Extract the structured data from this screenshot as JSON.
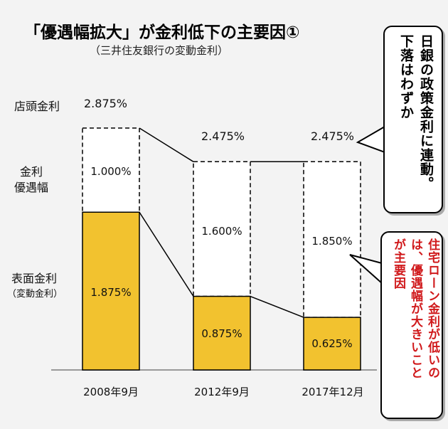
{
  "title": "「優遇幅拡大」が金利低下の主要因①",
  "subtitle": "（三井住友銀行の変動金利）",
  "row_labels": {
    "store_rate": "店頭金利",
    "discount_line1": "金利",
    "discount_line2": "優遇幅",
    "applied_line1": "表面金利",
    "applied_line2": "（変動金利）"
  },
  "chart_data": {
    "type": "bar",
    "stacked": true,
    "categories": [
      "2008年9月",
      "2012年9月",
      "2017年12月"
    ],
    "series": [
      {
        "values": [
          1.875,
          0.875,
          0.625
        ],
        "value_labels": [
          "1.875%",
          "0.875%",
          "0.625%"
        ],
        "color": "#f2c22f"
      },
      {
        "values": [
          1.0,
          1.6,
          1.85
        ],
        "value_labels": [
          "1.000%",
          "1.600%",
          "1.850%"
        ],
        "color": "#ffffff"
      }
    ],
    "totals": [
      2.875,
      2.475,
      2.475
    ],
    "total_labels": [
      "2.875%",
      "2.475%",
      "2.475%"
    ],
    "ylim": [
      0,
      2.875
    ]
  },
  "callouts": {
    "top_lines": [
      "日銀の政策金利に連動。",
      "下落はわずか"
    ],
    "bottom_lines": [
      "住宅ローン金利が低いの",
      "は、優遇幅が大きいこと",
      "が主要因"
    ]
  }
}
